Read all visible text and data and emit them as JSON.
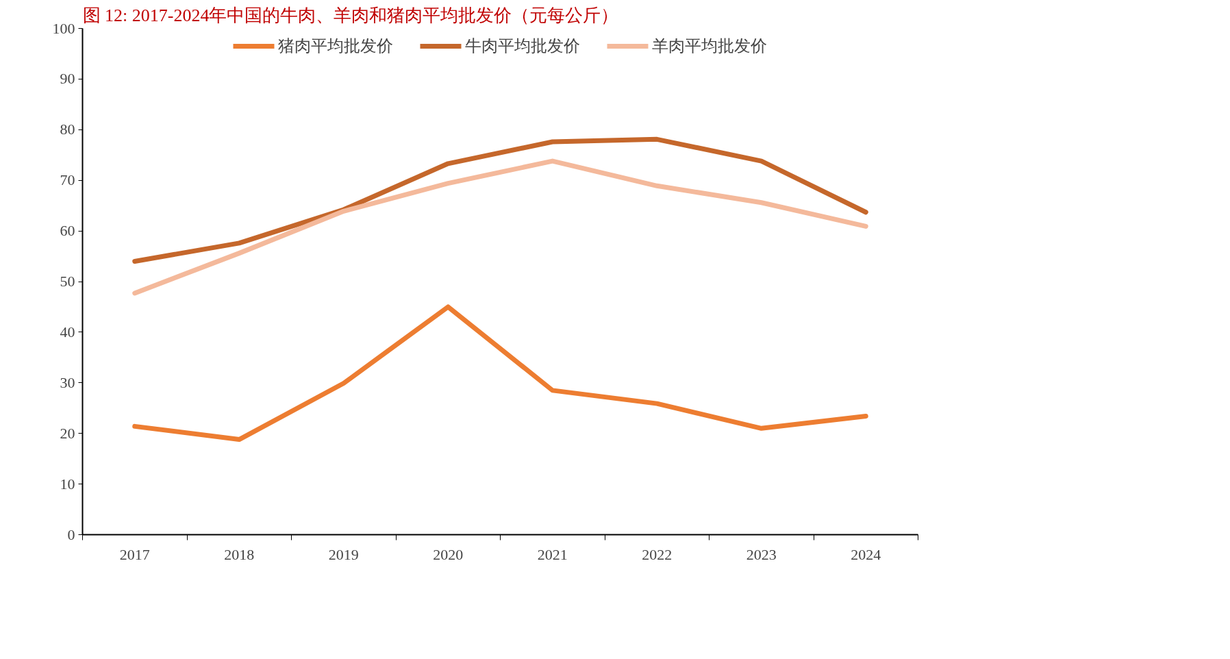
{
  "chart_data": {
    "type": "line",
    "title": "图 12:   2017-2024年中国的牛肉、羊肉和猪肉平均批发价（元每公斤）",
    "categories": [
      "2017",
      "2018",
      "2019",
      "2020",
      "2021",
      "2022",
      "2023",
      "2024"
    ],
    "series": [
      {
        "name": "猪肉平均批发价",
        "color": "#ed7d31",
        "values": [
          21.4,
          18.8,
          29.9,
          45,
          28.5,
          25.9,
          21,
          23.4
        ]
      },
      {
        "name": "牛肉平均批发价",
        "color": "#c5672b",
        "values": [
          54,
          57.6,
          64.2,
          73.3,
          77.6,
          78.1,
          73.8,
          63.7
        ]
      },
      {
        "name": "羊肉平均批发价",
        "color": "#f4b99b",
        "values": [
          47.7,
          55.6,
          63.9,
          69.4,
          73.8,
          68.9,
          65.6,
          60.9
        ]
      }
    ],
    "ylim": [
      0,
      100
    ],
    "yticks": [
      0,
      10,
      20,
      30,
      40,
      50,
      60,
      70,
      80,
      90,
      100
    ],
    "grid": false,
    "legend": "top",
    "marker": "none",
    "line_style": "solid"
  }
}
